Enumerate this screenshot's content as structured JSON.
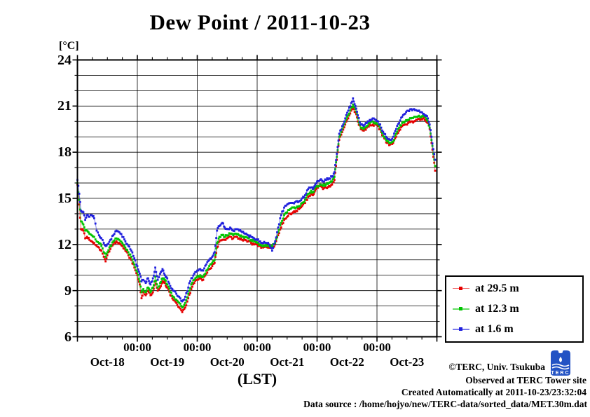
{
  "title": "Dew Point / 2011-10-23",
  "y_axis": {
    "unit_label": "[°C]",
    "min": 6,
    "max": 24,
    "major_tick_step": 3,
    "minor_tick_step": 1,
    "major_tick_labels": [
      "24",
      "21",
      "18",
      "15",
      "12",
      "9",
      "6"
    ]
  },
  "x_axis": {
    "axis_label": "(LST)",
    "midnight_labels": [
      "00:00",
      "00:00",
      "00:00",
      "00:00",
      "00:00"
    ],
    "day_labels": [
      "Oct-18",
      "Oct-19",
      "Oct-20",
      "Oct-21",
      "Oct-22",
      "Oct-23"
    ],
    "days_total": 6,
    "minor_ticks_per_day": 4
  },
  "legend": {
    "items": [
      {
        "label": "at 29.5 m",
        "color": "#e60000"
      },
      {
        "label": "at 12.3 m",
        "color": "#00c400"
      },
      {
        "label": "at 1.6 m",
        "color": "#2020dd"
      }
    ]
  },
  "footer": {
    "credit": "©TERC, Univ. Tsukuba",
    "observed": "Observed at TERC Tower site",
    "created": "Created Automatically at 2011-10-23/23:32:04",
    "datasource": "Data source : /home/hojyo/new/TERC-data/sorted_data/MET.30m.dat",
    "logo_text": "TERC",
    "logo_color": "#2353c4"
  },
  "chart_data": {
    "type": "line",
    "title": "Dew Point / 2011-10-23",
    "xlabel": "(LST)",
    "ylabel": "[°C]",
    "x_unit": "days since 2011-10-18 00:00 LST",
    "x_range": [
      0,
      6
    ],
    "y_range": [
      6,
      24
    ],
    "grid": "on",
    "legend_position": "outside-right-bottom",
    "x": [
      0.0,
      0.03,
      0.06,
      0.1,
      0.13,
      0.16,
      0.2,
      0.24,
      0.28,
      0.32,
      0.36,
      0.4,
      0.44,
      0.47,
      0.5,
      0.55,
      0.6,
      0.65,
      0.7,
      0.75,
      0.8,
      0.85,
      0.9,
      0.95,
      1.0,
      1.04,
      1.07,
      1.1,
      1.14,
      1.18,
      1.22,
      1.26,
      1.3,
      1.34,
      1.38,
      1.42,
      1.46,
      1.5,
      1.55,
      1.6,
      1.65,
      1.7,
      1.75,
      1.8,
      1.85,
      1.9,
      1.95,
      2.0,
      2.05,
      2.1,
      2.15,
      2.2,
      2.25,
      2.29,
      2.33,
      2.37,
      2.42,
      2.46,
      2.5,
      2.55,
      2.6,
      2.65,
      2.7,
      2.75,
      2.8,
      2.85,
      2.9,
      2.95,
      3.0,
      3.05,
      3.1,
      3.15,
      3.2,
      3.25,
      3.3,
      3.35,
      3.4,
      3.45,
      3.5,
      3.55,
      3.6,
      3.65,
      3.7,
      3.75,
      3.8,
      3.85,
      3.9,
      3.93,
      3.97,
      4.0,
      4.05,
      4.1,
      4.15,
      4.2,
      4.25,
      4.29,
      4.33,
      4.37,
      4.42,
      4.47,
      4.52,
      4.57,
      4.6,
      4.64,
      4.68,
      4.73,
      4.78,
      4.83,
      4.88,
      4.93,
      4.98,
      5.02,
      5.07,
      5.12,
      5.17,
      5.22,
      5.27,
      5.32,
      5.37,
      5.42,
      5.47,
      5.52,
      5.57,
      5.62,
      5.67,
      5.72,
      5.77,
      5.81,
      5.85,
      5.88,
      5.91,
      5.94,
      5.97
    ],
    "series": [
      {
        "name": "at 29.5 m",
        "color": "#e60000",
        "values": [
          15.9,
          14.6,
          13.0,
          12.9,
          12.4,
          12.5,
          12.3,
          12.2,
          12.1,
          11.9,
          11.8,
          11.6,
          11.2,
          10.9,
          11.3,
          11.7,
          12.0,
          12.2,
          12.1,
          11.9,
          11.6,
          11.3,
          11.0,
          10.5,
          10.0,
          9.4,
          8.5,
          8.9,
          8.7,
          9.0,
          8.7,
          8.9,
          9.6,
          9.0,
          9.2,
          9.6,
          9.5,
          9.2,
          8.7,
          8.4,
          8.2,
          7.9,
          7.6,
          7.9,
          8.5,
          9.1,
          9.5,
          9.7,
          9.8,
          9.7,
          10.1,
          10.4,
          10.6,
          10.8,
          11.8,
          12.2,
          12.3,
          12.3,
          12.4,
          12.5,
          12.4,
          12.5,
          12.4,
          12.3,
          12.3,
          12.2,
          12.1,
          12.0,
          12.0,
          11.9,
          11.8,
          11.9,
          11.8,
          11.8,
          12.0,
          12.6,
          13.1,
          13.6,
          13.8,
          14.0,
          14.1,
          14.2,
          14.3,
          14.5,
          14.7,
          15.1,
          15.3,
          15.2,
          15.5,
          15.7,
          15.8,
          15.6,
          15.7,
          15.8,
          15.9,
          16.2,
          17.5,
          18.8,
          19.3,
          19.8,
          20.2,
          20.7,
          20.9,
          20.6,
          20.0,
          19.5,
          19.4,
          19.6,
          19.8,
          19.8,
          19.8,
          19.7,
          19.3,
          18.9,
          18.6,
          18.5,
          18.6,
          19.0,
          19.4,
          19.7,
          19.8,
          19.9,
          20.0,
          20.0,
          20.1,
          20.1,
          20.2,
          20.1,
          19.9,
          19.5,
          18.6,
          17.7,
          16.8
        ]
      },
      {
        "name": "at 12.3 m",
        "color": "#00c400",
        "values": [
          16.0,
          14.9,
          13.5,
          13.3,
          12.9,
          12.9,
          12.7,
          12.6,
          12.5,
          12.2,
          12.1,
          11.9,
          11.5,
          11.2,
          11.5,
          11.9,
          12.2,
          12.4,
          12.3,
          12.1,
          11.8,
          11.5,
          11.2,
          10.7,
          10.2,
          9.6,
          8.9,
          9.1,
          8.9,
          9.2,
          8.9,
          9.2,
          9.9,
          9.2,
          9.5,
          9.8,
          9.7,
          9.4,
          8.9,
          8.6,
          8.4,
          8.2,
          7.9,
          8.2,
          8.8,
          9.4,
          9.7,
          9.9,
          10.0,
          9.9,
          10.3,
          10.6,
          10.8,
          11.0,
          12.1,
          12.5,
          12.6,
          12.5,
          12.6,
          12.7,
          12.6,
          12.7,
          12.6,
          12.5,
          12.5,
          12.4,
          12.3,
          12.2,
          12.1,
          12.0,
          11.9,
          12.0,
          11.9,
          11.9,
          12.1,
          12.8,
          13.4,
          13.9,
          14.1,
          14.3,
          14.4,
          14.4,
          14.5,
          14.7,
          14.9,
          15.3,
          15.5,
          15.4,
          15.7,
          15.8,
          15.9,
          15.8,
          15.9,
          16.0,
          16.1,
          16.4,
          17.7,
          19.0,
          19.5,
          20.0,
          20.4,
          20.9,
          21.1,
          20.8,
          20.2,
          19.6,
          19.5,
          19.7,
          19.9,
          20.0,
          19.9,
          19.8,
          19.4,
          19.0,
          18.7,
          18.6,
          18.7,
          19.2,
          19.6,
          19.9,
          20.0,
          20.1,
          20.2,
          20.3,
          20.3,
          20.3,
          20.4,
          20.3,
          20.0,
          19.6,
          18.8,
          17.9,
          17.1
        ]
      },
      {
        "name": "at 1.6 m",
        "color": "#2020dd",
        "values": [
          16.2,
          15.3,
          14.2,
          14.1,
          13.6,
          13.9,
          13.8,
          13.9,
          13.7,
          12.9,
          12.6,
          12.4,
          12.1,
          11.9,
          12.0,
          12.3,
          12.6,
          12.9,
          12.8,
          12.5,
          12.2,
          11.9,
          11.6,
          11.1,
          10.6,
          10.1,
          9.6,
          9.7,
          9.5,
          9.8,
          9.4,
          9.8,
          10.5,
          9.7,
          10.1,
          10.4,
          10.0,
          9.8,
          9.3,
          9.0,
          8.8,
          8.6,
          8.3,
          8.6,
          9.2,
          9.8,
          10.1,
          10.3,
          10.4,
          10.3,
          10.7,
          11.0,
          11.2,
          11.5,
          12.9,
          13.2,
          13.4,
          13.1,
          13.0,
          13.1,
          12.9,
          13.0,
          12.9,
          12.8,
          12.7,
          12.6,
          12.5,
          12.4,
          12.3,
          12.2,
          12.1,
          12.1,
          12.0,
          11.6,
          12.2,
          13.1,
          13.9,
          14.4,
          14.6,
          14.7,
          14.7,
          14.8,
          14.8,
          15.0,
          15.2,
          15.6,
          15.7,
          15.6,
          15.9,
          16.1,
          16.2,
          16.1,
          16.2,
          16.3,
          16.4,
          16.7,
          17.9,
          19.2,
          19.7,
          20.2,
          20.7,
          21.2,
          21.5,
          21.0,
          20.4,
          19.8,
          19.7,
          19.9,
          20.1,
          20.2,
          20.1,
          20.0,
          19.6,
          19.2,
          18.9,
          18.8,
          19.0,
          19.5,
          19.9,
          20.3,
          20.5,
          20.7,
          20.8,
          20.8,
          20.7,
          20.6,
          20.5,
          20.4,
          20.2,
          19.8,
          19.0,
          18.2,
          17.5
        ]
      }
    ]
  }
}
